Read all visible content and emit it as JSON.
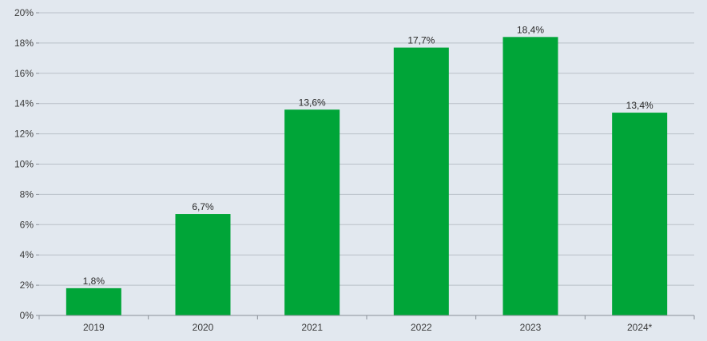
{
  "chart_data": {
    "type": "bar",
    "categories": [
      "2019",
      "2020",
      "2021",
      "2022",
      "2023",
      "2024*"
    ],
    "values": [
      1.8,
      6.7,
      13.6,
      17.7,
      18.4,
      13.4
    ],
    "data_labels": [
      "1,8%",
      "6,7%",
      "13,6%",
      "17,7%",
      "18,4%",
      "13,4%"
    ],
    "y_ticks": [
      0,
      2,
      4,
      6,
      8,
      10,
      12,
      14,
      16,
      18,
      20
    ],
    "y_tick_labels": [
      "0%",
      "2%",
      "4%",
      "6%",
      "8%",
      "10%",
      "12%",
      "14%",
      "16%",
      "18%",
      "20%"
    ],
    "ylim": [
      0,
      20
    ],
    "grid": true,
    "colors": {
      "bar": "#00a538",
      "background": "#e2e8ef",
      "grid": "#b9c0c8",
      "axis": "#8a9098"
    }
  }
}
